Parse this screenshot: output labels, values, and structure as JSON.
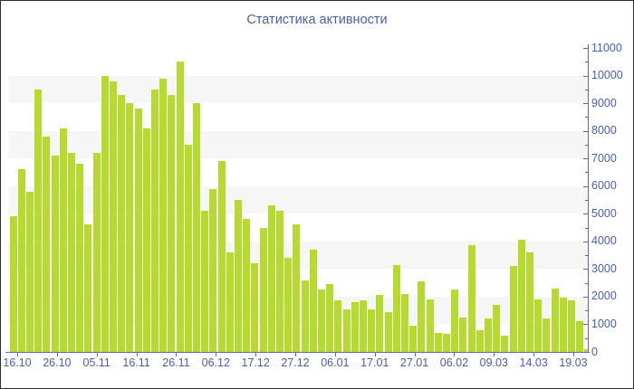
{
  "title": "Статистика активности",
  "colors": {
    "bar": "#b6da2f",
    "axis": "#5c6cb4",
    "tick_label": "#4a5fad",
    "title": "#4d5fa5",
    "stripe": "#f6f6f6",
    "background": "#ffffff",
    "border": "#2f2f2f"
  },
  "chart_data": {
    "type": "bar",
    "title": "Статистика активности",
    "xlabel": "",
    "ylabel": "",
    "ylim": [
      0,
      11000
    ],
    "y_tick_step": 1000,
    "y_minor_tick_step": 500,
    "y_axis_side": "right",
    "legend_position": "none",
    "grid": "alternating horizontal stripes on odd thousand bands (1000-2000, 3000-4000, 5000-6000, 7000-8000, 9000-10000)",
    "x_tick_labels": [
      "16.10",
      "26.10",
      "05.11",
      "16.11",
      "26.11",
      "06.12",
      "17.12",
      "27.12",
      "06.01",
      "17.01",
      "27.01",
      "06.02",
      "09.03",
      "14.03",
      "19.03"
    ],
    "values": [
      4900,
      6600,
      5800,
      9500,
      7800,
      7100,
      8100,
      7200,
      6800,
      4600,
      7200,
      10000,
      9800,
      9300,
      9000,
      8800,
      8100,
      9500,
      9900,
      9300,
      10500,
      7500,
      9000,
      5100,
      5900,
      6900,
      3600,
      5500,
      4800,
      3200,
      4500,
      5300,
      5100,
      3400,
      4600,
      2600,
      3700,
      2250,
      2450,
      1850,
      1550,
      1800,
      1850,
      1550,
      2050,
      1450,
      3150,
      2100,
      950,
      2550,
      1900,
      700,
      650,
      2250,
      1250,
      3850,
      800,
      1200,
      1700,
      600,
      3100,
      4050,
      3600,
      1900,
      1200,
      2300,
      1950,
      1850,
      1100,
      100
    ]
  }
}
